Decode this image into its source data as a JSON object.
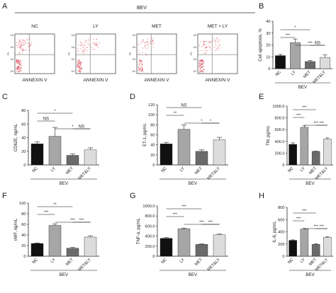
{
  "figure": {
    "panel_a": {
      "letter": "A",
      "group_label": "BEV",
      "plots": [
        {
          "title": "NC",
          "xlabel": "ANNEXIN V",
          "ylabel": "PI"
        },
        {
          "title": "LY",
          "xlabel": "ANNEXIN V",
          "ylabel": "PI"
        },
        {
          "title": "MET",
          "xlabel": "ANNEXIN V",
          "ylabel": "PI"
        },
        {
          "title": "MET + LY",
          "xlabel": "ANNEXIN V",
          "ylabel": "PI"
        }
      ],
      "axis_ticks": [
        "10³",
        "10²",
        "10¹",
        "10⁰"
      ],
      "colors": {
        "dots": "#d6293c",
        "quadrant": "#555555"
      }
    }
  },
  "chart_data": [
    {
      "panel": "B",
      "type": "bar",
      "categories": [
        "NC",
        "LY",
        "MET",
        "MET&LY"
      ],
      "values": [
        11,
        22,
        6,
        9.5
      ],
      "errors": [
        1,
        3,
        0.8,
        2
      ],
      "ylabel": "Cell apoptosis, %",
      "ylim": [
        0,
        40
      ],
      "yticks": [
        "0",
        "10",
        "20",
        "30",
        "40"
      ],
      "group_label": "BEV",
      "significance": [
        {
          "from": 0,
          "to": 2,
          "label": "*"
        },
        {
          "from": 0,
          "to": 1,
          "label": "***"
        },
        {
          "from": 1,
          "to": 3,
          "label": "***"
        },
        {
          "from": 2,
          "to": 3,
          "label": "NS"
        }
      ]
    },
    {
      "panel": "C",
      "type": "bar",
      "categories": [
        "NC",
        "LY",
        "MET",
        "MET&LY"
      ],
      "values": [
        31,
        42,
        14,
        22
      ],
      "errors": [
        3,
        13,
        2,
        3
      ],
      "ylabel": "CD62E, ng/mL",
      "ylim": [
        0,
        80
      ],
      "yticks": [
        "0",
        "20",
        "40",
        "60",
        "80"
      ],
      "group_label": "BEV",
      "significance": [
        {
          "from": 0,
          "to": 2,
          "label": "*"
        },
        {
          "from": 0,
          "to": 1,
          "label": "NS"
        },
        {
          "from": 1,
          "to": 3,
          "label": "*"
        },
        {
          "from": 2,
          "to": 3,
          "label": "NS"
        }
      ]
    },
    {
      "panel": "D",
      "type": "bar",
      "categories": [
        "NC",
        "LY",
        "MET",
        "MET&LY"
      ],
      "values": [
        42,
        71,
        27,
        50
      ],
      "errors": [
        3,
        9,
        3,
        5
      ],
      "ylabel": "ET-1, pg/mL",
      "ylim": [
        0,
        120
      ],
      "yticks": [
        "0",
        "20",
        "40",
        "60",
        "80",
        "100",
        "120"
      ],
      "group_label": "BEV",
      "significance": [
        {
          "from": 0,
          "to": 2,
          "label": "NS"
        },
        {
          "from": 0,
          "to": 1,
          "label": "**"
        },
        {
          "from": 1,
          "to": 3,
          "label": "*"
        },
        {
          "from": 2,
          "to": 3,
          "label": "*"
        }
      ]
    },
    {
      "panel": "E",
      "type": "bar",
      "categories": [
        "NC",
        "LY",
        "MET",
        "MET&LY"
      ],
      "values": [
        350,
        640,
        230,
        440
      ],
      "errors": [
        25,
        30,
        5,
        20
      ],
      "ylabel": "TM, pg/mL",
      "ylim": [
        0,
        1000
      ],
      "yticks": [
        "0",
        "200.0",
        "400.0",
        "600.0",
        "800.0",
        "1000.0"
      ],
      "group_label": "BEV",
      "significance": [
        {
          "from": 0,
          "to": 2,
          "label": "***"
        },
        {
          "from": 0,
          "to": 1,
          "label": "***"
        },
        {
          "from": 1,
          "to": 3,
          "label": "***"
        },
        {
          "from": 2,
          "to": 3,
          "label": "***"
        }
      ]
    },
    {
      "panel": "F",
      "type": "bar",
      "categories": [
        "NC",
        "LY",
        "MET",
        "MET&LY"
      ],
      "values": [
        24,
        58,
        15,
        36
      ],
      "errors": [
        1,
        3,
        1.5,
        2.5
      ],
      "ylabel": "vWF, ng/mL",
      "ylim": [
        0,
        100
      ],
      "yticks": [
        "0",
        "20",
        "40",
        "60",
        "80",
        "100"
      ],
      "group_label": "BEV",
      "significance": [
        {
          "from": 0,
          "to": 2,
          "label": "**"
        },
        {
          "from": 0,
          "to": 1,
          "label": "***"
        },
        {
          "from": 1,
          "to": 3,
          "label": "***"
        },
        {
          "from": 2,
          "to": 3,
          "label": "***"
        }
      ]
    },
    {
      "panel": "G",
      "type": "bar",
      "categories": [
        "NC",
        "LY",
        "MET",
        "MET&LY"
      ],
      "values": [
        355,
        545,
        235,
        425
      ],
      "errors": [
        15,
        15,
        8,
        15
      ],
      "ylabel": "TNF-α, pg/mL",
      "ylim": [
        0,
        1000
      ],
      "yticks": [
        "0",
        "200.0",
        "400.0",
        "600.0",
        "800.0",
        "1000.0"
      ],
      "group_label": "BEV",
      "significance": [
        {
          "from": 0,
          "to": 2,
          "label": "***"
        },
        {
          "from": 0,
          "to": 1,
          "label": "***"
        },
        {
          "from": 1,
          "to": 3,
          "label": "***"
        },
        {
          "from": 2,
          "to": 3,
          "label": "***"
        }
      ]
    },
    {
      "panel": "H",
      "type": "bar",
      "categories": [
        "NC",
        "LY",
        "MET",
        "MET&LY"
      ],
      "values": [
        260,
        445,
        195,
        310
      ],
      "errors": [
        8,
        10,
        10,
        10
      ],
      "ylabel": "IL-6, pg/mL",
      "ylim": [
        0,
        800
      ],
      "yticks": [
        "0",
        "200",
        "400",
        "600",
        "800"
      ],
      "group_label": "BEV",
      "significance": [
        {
          "from": 0,
          "to": 2,
          "label": "***"
        },
        {
          "from": 0,
          "to": 1,
          "label": "***"
        },
        {
          "from": 1,
          "to": 3,
          "label": "***"
        },
        {
          "from": 2,
          "to": 3,
          "label": "***"
        }
      ]
    }
  ],
  "bar_colors": [
    "#111111",
    "#a6a6a6",
    "#6a6a6a",
    "#dcdcdc"
  ]
}
